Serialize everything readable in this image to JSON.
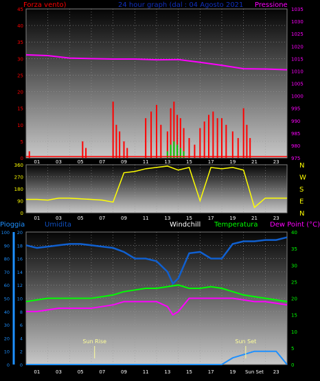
{
  "panel1": {
    "title_left": "Forza vento)",
    "title_center": "24 hour graph (dal : 04 Agosto 2021",
    "title_right": "Pressione",
    "left_ticks": [
      "45",
      "40",
      "35",
      "30",
      "25",
      "20",
      "15",
      "10",
      "5",
      "0"
    ],
    "right_ticks": [
      "1035",
      "1030",
      "1025",
      "1020",
      "1015",
      "1010",
      "1005",
      "1000",
      "995",
      "990",
      "985",
      "980",
      "975"
    ],
    "x_ticks": [
      "01",
      "03",
      "05",
      "07",
      "09",
      "11",
      "13",
      "15",
      "17",
      "19",
      "21",
      "23"
    ]
  },
  "panel2": {
    "left_ticks": [
      "360",
      "270",
      "180",
      "90",
      "0"
    ],
    "right_labels": [
      "N",
      "W",
      "S",
      "E",
      "N"
    ],
    "x_ticks": [
      "01",
      "03",
      "05",
      "07",
      "09",
      "11",
      "13",
      "15",
      "17",
      "19",
      "21",
      "23"
    ]
  },
  "panel3": {
    "legend_pioggia": "Pioggia",
    "legend_umidita": "Umidita",
    "legend_windchill": "Windchill",
    "legend_temperatura": "Temperatura",
    "legend_dewpoint": "Dew Point (°C)",
    "rain_ticks": [
      "20",
      "18",
      "16",
      "14",
      "12",
      "10",
      "8",
      "6",
      "4",
      "2",
      "0"
    ],
    "hum_ticks": [
      "100",
      "90",
      "80",
      "70",
      "60",
      "50",
      "40",
      "30",
      "20",
      "10",
      "0"
    ],
    "right_ticks": [
      "40",
      "35",
      "30",
      "25",
      "20",
      "15",
      "10",
      "5",
      "0"
    ],
    "x_ticks": [
      "01",
      "03",
      "05",
      "07",
      "09",
      "11",
      "13",
      "15",
      "17",
      "19",
      "Sun Set",
      "23"
    ],
    "sunrise_label": "Sun Rise",
    "sunset_label": "Sun Set"
  },
  "colors": {
    "wind": "#ff0000",
    "gust_fill": "#00cc00",
    "pressure": "#ff00ff",
    "direction": "#ffff00",
    "humidity": "#1060d0",
    "temperature": "#00ff00",
    "dewpoint": "#ff00ff",
    "rain": "#1e90ff",
    "sunmarker": "#ffff99"
  },
  "chart_data": [
    {
      "type": "bar",
      "name": "wind_and_pressure",
      "x_range_hours": [
        0,
        24
      ],
      "wind_ylim": [
        0,
        45
      ],
      "pressure_ylim": [
        975,
        1035
      ],
      "pressure": {
        "x": [
          0,
          2,
          4,
          6,
          8,
          10,
          12,
          14,
          16,
          18,
          20,
          22,
          24
        ],
        "y": [
          1016.5,
          1016.2,
          1015.2,
          1015,
          1014.8,
          1014.8,
          1014.5,
          1014.6,
          1013.5,
          1012.3,
          1010.9,
          1010.8,
          1010.5
        ]
      },
      "wind": {
        "x": [
          0.3,
          5.2,
          5.5,
          8.0,
          8.3,
          8.6,
          9.0,
          9.3,
          11.0,
          11.5,
          12.0,
          12.4,
          13.0,
          13.3,
          13.6,
          13.9,
          14.2,
          14.5,
          15.0,
          15.5,
          16.0,
          16.4,
          16.8,
          17.2,
          17.6,
          18.0,
          18.4,
          19.0,
          19.5,
          20.0,
          20.3,
          20.6
        ],
        "y": [
          2,
          5,
          3,
          17,
          10,
          8,
          5,
          3,
          12,
          14,
          16,
          10,
          8,
          15,
          17,
          13,
          12,
          9,
          6,
          4,
          9,
          11,
          13,
          14,
          12,
          12,
          10,
          8,
          6,
          15,
          10,
          6
        ]
      },
      "gust": {
        "x": [
          13.0,
          13.3,
          13.6,
          13.9,
          14.2,
          14.5
        ],
        "y": [
          2,
          4,
          5,
          4,
          3,
          2
        ]
      }
    },
    {
      "type": "line",
      "name": "wind_direction",
      "ylim": [
        0,
        360
      ],
      "x": [
        0,
        1,
        2,
        3,
        4,
        5,
        6,
        7,
        8,
        9,
        10,
        11,
        12,
        13,
        14,
        15,
        16,
        17,
        18,
        19,
        20,
        21,
        22,
        23,
        24
      ],
      "y": [
        100,
        100,
        95,
        110,
        110,
        105,
        100,
        95,
        80,
        300,
        310,
        330,
        340,
        350,
        320,
        340,
        90,
        340,
        330,
        340,
        320,
        40,
        110,
        110,
        110
      ]
    },
    {
      "type": "line",
      "name": "temperature_humidity_rain",
      "temp_ylim": [
        0,
        40
      ],
      "hum_ylim": [
        0,
        100
      ],
      "rain_ylim": [
        0,
        20
      ],
      "humidity": {
        "x": [
          0,
          1,
          2,
          3,
          4,
          5,
          6,
          7,
          8,
          9,
          10,
          11,
          12,
          13,
          13.5,
          14,
          15,
          16,
          17,
          18,
          19,
          20,
          21,
          22,
          23,
          24
        ],
        "y": [
          90,
          88,
          89,
          90,
          91,
          91,
          90,
          89,
          88,
          85,
          80,
          80,
          78,
          70,
          61,
          65,
          84,
          85,
          80,
          80,
          91,
          93,
          93,
          94,
          94,
          96
        ]
      },
      "temperature": {
        "x": [
          0,
          1,
          2,
          3,
          4,
          5,
          6,
          7,
          8,
          9,
          10,
          11,
          12,
          13,
          14,
          15,
          16,
          17,
          18,
          19,
          20,
          21,
          22,
          23,
          24
        ],
        "y": [
          19,
          19.5,
          20,
          20,
          20,
          20,
          20,
          20.5,
          21,
          22,
          22.5,
          23,
          23,
          23.5,
          24,
          23,
          23,
          23.5,
          23,
          22,
          21,
          20.5,
          20,
          19.5,
          19
        ]
      },
      "dewpoint": {
        "x": [
          0,
          1,
          2,
          3,
          4,
          5,
          6,
          7,
          8,
          9,
          10,
          11,
          12,
          13,
          13.5,
          14,
          15,
          16,
          17,
          18,
          19,
          20,
          21,
          22,
          23,
          24
        ],
        "y": [
          16,
          16,
          16.5,
          17,
          17,
          17,
          17,
          17.5,
          18,
          19,
          19,
          19,
          19,
          17.5,
          15,
          16,
          20,
          20,
          20,
          20,
          20,
          19.5,
          19,
          19,
          18.5,
          18
        ]
      },
      "rain": {
        "x": [
          0,
          18,
          19,
          20,
          21,
          22,
          23,
          24
        ],
        "y": [
          0,
          0,
          1,
          1.5,
          2,
          2,
          2,
          0
        ]
      },
      "sunrise_hour": 6.3,
      "sunset_hour": 20.2
    }
  ]
}
